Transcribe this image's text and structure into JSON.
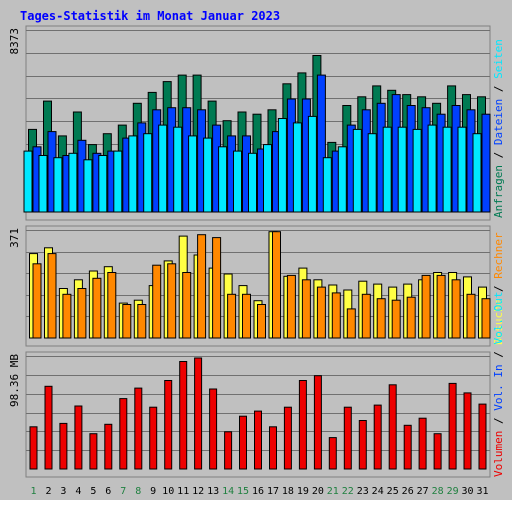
{
  "title": "Tages-Statistik im Monat Januar 2023",
  "colors": {
    "background": "#C0C0C0",
    "title": "#0000FF",
    "frame": "#808080",
    "grid": "#707070",
    "anfragen": "#007A52",
    "dateien": "#0040FF",
    "seiten": "#00E8FF",
    "besuche": "#FFFF44",
    "rechner": "#FF8800",
    "volumen": "#EE0000",
    "weekday_label": "#000000",
    "weekend_label": "#208040",
    "legend_separator": "#000000"
  },
  "chart_data": [
    {
      "type": "bar",
      "name": "hits-panel",
      "categories": [
        "1",
        "2",
        "3",
        "4",
        "5",
        "6",
        "7",
        "8",
        "9",
        "10",
        "11",
        "12",
        "13",
        "14",
        "15",
        "16",
        "17",
        "18",
        "19",
        "20",
        "21",
        "22",
        "23",
        "24",
        "25",
        "26",
        "27",
        "28",
        "29",
        "30",
        "31"
      ],
      "weekend_days": [
        1,
        7,
        8,
        14,
        15,
        21,
        22,
        28,
        29
      ],
      "max_label": "8373",
      "ylim": [
        0,
        8373
      ],
      "series": [
        {
          "name": "Anfragen",
          "color_key": "anfragen",
          "values": [
            3800,
            5100,
            3500,
            4600,
            3100,
            3600,
            4000,
            5000,
            5500,
            6000,
            6300,
            6300,
            5100,
            4200,
            4600,
            4500,
            4700,
            5900,
            6400,
            7200,
            3200,
            4900,
            5300,
            5800,
            5600,
            5400,
            5300,
            5000,
            5800,
            5400,
            5300
          ]
        },
        {
          "name": "Dateien",
          "color_key": "dateien",
          "values": [
            3000,
            3700,
            2600,
            3300,
            2700,
            2800,
            3400,
            4100,
            4700,
            4800,
            4800,
            4700,
            4000,
            3500,
            3500,
            2900,
            3700,
            5200,
            5200,
            6300,
            2800,
            4000,
            4700,
            5000,
            5400,
            4900,
            4800,
            4500,
            4900,
            4700,
            4500
          ]
        },
        {
          "name": "Seiten",
          "color_key": "seiten",
          "values": [
            2800,
            2600,
            2500,
            2700,
            2400,
            2600,
            2800,
            3500,
            3600,
            4000,
            3900,
            3500,
            3400,
            3000,
            2800,
            2700,
            3100,
            4300,
            4100,
            4400,
            2500,
            3000,
            3800,
            3600,
            3900,
            3900,
            3800,
            4000,
            3900,
            3900,
            3600
          ]
        }
      ]
    },
    {
      "type": "bar",
      "name": "visits-panel",
      "categories": [
        "1",
        "2",
        "3",
        "4",
        "5",
        "6",
        "7",
        "8",
        "9",
        "10",
        "11",
        "12",
        "13",
        "14",
        "15",
        "16",
        "17",
        "18",
        "19",
        "20",
        "21",
        "22",
        "23",
        "24",
        "25",
        "26",
        "27",
        "28",
        "29",
        "30",
        "31"
      ],
      "max_label": "371",
      "ylim": [
        0,
        371
      ],
      "series": [
        {
          "name": "Besuche",
          "color_key": "besuche",
          "values": [
            290,
            310,
            170,
            200,
            230,
            245,
            120,
            130,
            180,
            265,
            350,
            285,
            240,
            220,
            180,
            128,
            365,
            212,
            240,
            200,
            182,
            165,
            195,
            185,
            175,
            185,
            200,
            225,
            225,
            210,
            175
          ]
        },
        {
          "name": "Rechner",
          "color_key": "rechner",
          "values": [
            255,
            290,
            150,
            170,
            205,
            225,
            115,
            115,
            250,
            255,
            225,
            355,
            345,
            150,
            150,
            115,
            365,
            215,
            200,
            175,
            155,
            100,
            150,
            135,
            130,
            140,
            215,
            215,
            200,
            150,
            135
          ]
        }
      ]
    },
    {
      "type": "bar",
      "name": "volume-panel",
      "categories": [
        "1",
        "2",
        "3",
        "4",
        "5",
        "6",
        "7",
        "8",
        "9",
        "10",
        "11",
        "12",
        "13",
        "14",
        "15",
        "16",
        "17",
        "18",
        "19",
        "20",
        "21",
        "22",
        "23",
        "24",
        "25",
        "26",
        "27",
        "28",
        "29",
        "30",
        "31"
      ],
      "max_label": "98.36 MB",
      "ylim": [
        0,
        98.36
      ],
      "series": [
        {
          "name": "Volumen",
          "color_key": "volumen",
          "values": [
            36.7,
            72.0,
            39.7,
            54.8,
            30.7,
            38.9,
            61.3,
            70.4,
            53.8,
            77.0,
            93.6,
            96.6,
            69.6,
            32.4,
            46.0,
            50.4,
            36.7,
            53.8,
            77.0,
            81.2,
            27.3,
            53.8,
            42.2,
            55.6,
            73.3,
            38.0,
            44.2,
            30.7,
            74.5,
            66.2,
            56.5
          ]
        }
      ]
    }
  ],
  "legend": {
    "hits": [
      {
        "label": "Anfragen",
        "color_key": "anfragen"
      },
      {
        "label": "Dateien",
        "color_key": "dateien"
      },
      {
        "label": "Seiten",
        "color_key": "seiten"
      }
    ],
    "visits": [
      {
        "label": "Besuche",
        "color_key": "besuche"
      },
      {
        "label": "Rechner",
        "color_key": "rechner"
      }
    ],
    "volume": [
      {
        "label": "Volumen",
        "color_key": "volumen"
      },
      {
        "label": "Vol. In",
        "color_key": "dateien"
      },
      {
        "label": "Vol. Out",
        "color_key": "seiten"
      }
    ]
  }
}
